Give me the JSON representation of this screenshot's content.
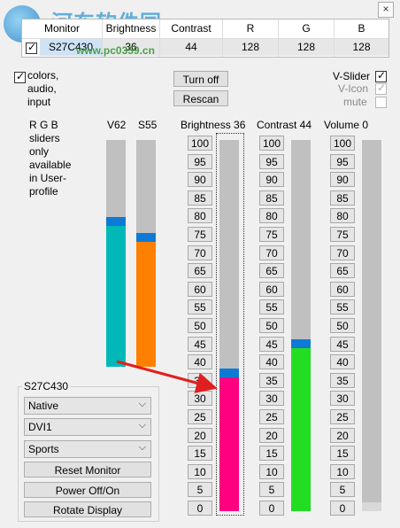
{
  "watermark": {
    "title": "河东软件园",
    "url": "www.pc0359.cn"
  },
  "monitor_table": {
    "headers": [
      "Monitor",
      "Brightness",
      "Contrast",
      "R",
      "G",
      "B"
    ],
    "row": [
      "S27C430",
      "36",
      "44",
      "128",
      "128",
      "128"
    ]
  },
  "options": {
    "colors_label": "colors,\naudio,\ninput",
    "turn_off_label": "Turn off",
    "rescan_label": "Rescan",
    "v_slider_label": "V-Slider",
    "v_icon_label": "V-Icon",
    "mute_label": "mute"
  },
  "rgb_note": "R G B\nsliders\nonly\navailable\nin User-\nprofile",
  "sliders": [
    {
      "key": "v62",
      "label": "V62",
      "value": 62,
      "color": "#00b8b8"
    },
    {
      "key": "s55",
      "label": "S55",
      "value": 55,
      "color": "#ff8000"
    },
    {
      "key": "brightness",
      "label": "Brightness 36",
      "value": 36,
      "color": "#ff0080"
    },
    {
      "key": "contrast",
      "label": "Contrast 44",
      "value": 44,
      "color": "#22dd22"
    },
    {
      "key": "volume",
      "label": "Volume 0",
      "value": 0,
      "color": "#c0c0c0"
    }
  ],
  "scale_ticks": [
    "100",
    "95",
    "90",
    "85",
    "80",
    "75",
    "70",
    "65",
    "60",
    "55",
    "50",
    "45",
    "40",
    "35",
    "30",
    "25",
    "20",
    "15",
    "10",
    "5",
    "0"
  ],
  "monitor_group": {
    "title": "S27C430",
    "mode_value": "Native",
    "input_value": "DVI1",
    "preset_value": "Sports",
    "reset_label": "Reset Monitor",
    "power_label": "Power Off/On",
    "rotate_label": "Rotate Display"
  },
  "colors": {
    "arrow": "#e02020",
    "thumb": "#0e7ad6"
  }
}
